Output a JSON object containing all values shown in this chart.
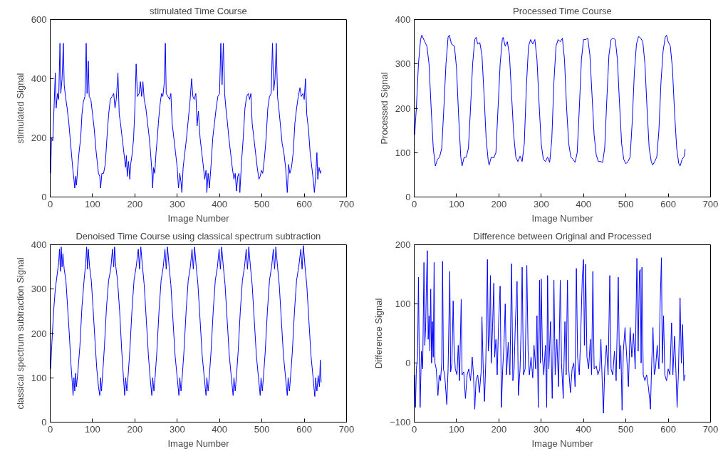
{
  "chart_data": [
    {
      "type": "line",
      "title": "stimulated Time Course",
      "xlabel": "Image Number",
      "ylabel": "stimulated Signal",
      "xlim": [
        0,
        700
      ],
      "ylim": [
        0,
        600
      ],
      "xticks": [
        0,
        100,
        200,
        300,
        400,
        500,
        600,
        700
      ],
      "yticks": [
        0,
        200,
        400,
        600
      ],
      "grid": false,
      "series": [
        {
          "color": "#0000ff",
          "x": [
            1,
            3,
            6,
            9,
            12,
            14,
            17,
            20,
            23,
            25,
            28,
            31,
            33,
            36,
            40,
            44,
            47,
            50,
            53,
            56,
            58,
            60,
            62,
            65,
            68,
            72,
            75,
            78,
            82,
            85,
            87,
            90,
            92,
            96,
            100,
            104,
            108,
            111,
            114,
            117,
            119,
            122,
            126,
            130,
            134,
            138,
            142,
            146,
            150,
            153,
            156,
            160,
            163,
            166,
            170,
            174,
            178,
            180,
            182,
            185,
            188,
            190,
            194,
            197,
            200,
            203,
            206,
            210,
            213,
            216,
            219,
            222,
            226,
            230,
            234,
            237,
            240,
            242,
            244,
            247,
            250,
            253,
            256,
            260,
            263,
            266,
            269,
            272,
            274,
            278,
            282,
            285,
            288,
            292,
            296,
            300,
            303,
            306,
            309,
            311,
            314,
            318,
            322,
            326,
            330,
            334,
            337,
            340,
            344,
            347,
            350,
            354,
            358,
            362,
            365,
            368,
            370,
            373,
            376,
            380,
            384,
            388,
            392,
            396,
            400,
            403,
            406,
            409,
            412,
            415,
            418,
            422,
            426,
            430,
            434,
            437,
            440,
            443,
            446,
            448,
            452,
            456,
            460,
            464,
            468,
            471,
            474,
            477,
            481,
            485,
            489,
            493,
            496,
            499,
            502,
            506,
            510,
            514,
            518,
            522,
            525,
            528,
            531,
            534,
            537,
            540,
            544,
            548,
            552,
            556,
            558,
            560,
            563,
            566,
            570,
            574,
            578,
            582,
            586,
            590,
            593,
            597,
            600,
            603,
            606,
            610,
            614,
            618,
            622,
            624,
            627,
            630,
            632,
            635,
            638,
            640
          ],
          "values": [
            80,
            200,
            190,
            300,
            420,
            300,
            350,
            330,
            520,
            350,
            400,
            520,
            380,
            340,
            300,
            250,
            200,
            150,
            100,
            60,
            30,
            70,
            40,
            100,
            150,
            200,
            280,
            320,
            340,
            520,
            350,
            460,
            340,
            330,
            280,
            230,
            160,
            120,
            80,
            70,
            30,
            80,
            80,
            110,
            200,
            280,
            330,
            340,
            350,
            300,
            330,
            420,
            280,
            250,
            200,
            150,
            100,
            140,
            70,
            120,
            60,
            110,
            150,
            200,
            300,
            450,
            340,
            350,
            390,
            340,
            390,
            330,
            300,
            250,
            200,
            150,
            90,
            30,
            100,
            80,
            150,
            200,
            260,
            320,
            350,
            340,
            380,
            520,
            350,
            340,
            330,
            350,
            250,
            200,
            150,
            100,
            30,
            80,
            50,
            15,
            100,
            150,
            200,
            260,
            320,
            400,
            340,
            330,
            350,
            240,
            290,
            200,
            150,
            100,
            60,
            90,
            15,
            80,
            30,
            110,
            200,
            250,
            300,
            340,
            350,
            520,
            380,
            520,
            350,
            300,
            260,
            200,
            150,
            100,
            60,
            80,
            20,
            70,
            80,
            15,
            120,
            200,
            300,
            340,
            350,
            330,
            350,
            250,
            200,
            150,
            100,
            60,
            70,
            90,
            80,
            130,
            200,
            300,
            340,
            350,
            520,
            360,
            400,
            520,
            340,
            300,
            240,
            180,
            150,
            100,
            60,
            15,
            110,
            80,
            100,
            150,
            250,
            300,
            340,
            370,
            340,
            350,
            330,
            400,
            280,
            230,
            150,
            100,
            50,
            15,
            70,
            150,
            60,
            100,
            80,
            90
          ]
        }
      ]
    },
    {
      "type": "line",
      "title": "Processed Time Course",
      "xlabel": "Image Number",
      "ylabel": "Processed Signal",
      "xlim": [
        0,
        700
      ],
      "ylim": [
        0,
        400
      ],
      "xticks": [
        0,
        100,
        200,
        300,
        400,
        500,
        600,
        700
      ],
      "yticks": [
        0,
        100,
        200,
        300,
        400
      ],
      "grid": false,
      "series": [
        {
          "color": "#0000ff",
          "x": [
            1,
            5,
            10,
            15,
            18,
            25,
            30,
            35,
            40,
            45,
            50,
            55,
            60,
            65,
            70,
            75,
            80,
            83,
            88,
            95,
            100,
            105,
            110,
            113,
            118,
            123,
            128,
            133,
            138,
            143,
            146,
            150,
            155,
            160,
            165,
            170,
            175,
            177,
            182,
            188,
            193,
            198,
            203,
            208,
            210,
            215,
            220,
            225,
            230,
            235,
            240,
            245,
            250,
            255,
            260,
            265,
            270,
            275,
            280,
            285,
            290,
            295,
            300,
            305,
            310,
            315,
            320,
            325,
            330,
            335,
            340,
            345,
            350,
            355,
            360,
            365,
            370,
            375,
            380,
            385,
            390,
            395,
            400,
            405,
            410,
            415,
            420,
            425,
            430,
            435,
            440,
            445,
            450,
            455,
            460,
            465,
            470,
            475,
            480,
            485,
            490,
            495,
            500,
            505,
            510,
            515,
            520,
            525,
            530,
            535,
            540,
            545,
            550,
            555,
            560,
            563,
            568,
            573,
            578,
            583,
            588,
            593,
            596,
            600,
            605,
            610,
            615,
            620,
            625,
            628,
            633,
            638,
            640
          ],
          "values": [
            140,
            200,
            300,
            355,
            365,
            350,
            340,
            300,
            200,
            110,
            70,
            85,
            90,
            110,
            200,
            300,
            360,
            365,
            345,
            340,
            290,
            180,
            90,
            70,
            90,
            90,
            110,
            200,
            300,
            355,
            360,
            345,
            348,
            320,
            230,
            130,
            80,
            72,
            90,
            88,
            100,
            200,
            300,
            355,
            360,
            340,
            350,
            320,
            230,
            140,
            90,
            80,
            92,
            80,
            120,
            250,
            340,
            355,
            345,
            355,
            310,
            210,
            120,
            85,
            80,
            90,
            78,
            130,
            260,
            340,
            355,
            350,
            358,
            310,
            200,
            120,
            90,
            85,
            78,
            100,
            200,
            310,
            355,
            355,
            358,
            320,
            230,
            140,
            95,
            80,
            80,
            78,
            110,
            220,
            320,
            355,
            358,
            355,
            310,
            210,
            120,
            85,
            75,
            80,
            90,
            170,
            280,
            345,
            362,
            358,
            350,
            300,
            200,
            110,
            80,
            72,
            80,
            90,
            150,
            260,
            330,
            360,
            365,
            350,
            340,
            290,
            190,
            110,
            75,
            70,
            85,
            92,
            108
          ]
        }
      ]
    },
    {
      "type": "line",
      "title": "Denoised Time Course using classical spectrum subtraction",
      "xlabel": "Image Number",
      "ylabel": "classical spectrum subtraction Signal",
      "xlim": [
        0,
        700
      ],
      "ylim": [
        0,
        400
      ],
      "xticks": [
        0,
        100,
        200,
        300,
        400,
        500,
        600,
        700
      ],
      "yticks": [
        0,
        100,
        200,
        300,
        400
      ],
      "grid": false,
      "series": [
        {
          "color": "#0000ff",
          "x": [
            1,
            4,
            8,
            12,
            16,
            20,
            22,
            24,
            26,
            28,
            30,
            33,
            37,
            41,
            45,
            49,
            52,
            54,
            56,
            58,
            60,
            62,
            65,
            70,
            75,
            80,
            84,
            86,
            88,
            90,
            93,
            97,
            101,
            106,
            110,
            114,
            117,
            119,
            121,
            124,
            128,
            133,
            138,
            143,
            147,
            150,
            152,
            155,
            159,
            164,
            169,
            173,
            176,
            178,
            181,
            184,
            188,
            193,
            198,
            203,
            208,
            211,
            214,
            218,
            222,
            227,
            232,
            236,
            240,
            242,
            245,
            248,
            252,
            257,
            262,
            267,
            271,
            274,
            277,
            281,
            285,
            290,
            295,
            300,
            304,
            306,
            309,
            312,
            316,
            321,
            326,
            331,
            335,
            338,
            341,
            345,
            349,
            354,
            359,
            364,
            368,
            370,
            373,
            376,
            380,
            385,
            390,
            395,
            399,
            402,
            405,
            409,
            413,
            418,
            423,
            428,
            432,
            434,
            437,
            440,
            444,
            449,
            454,
            459,
            463,
            466,
            469,
            473,
            477,
            482,
            487,
            492,
            496,
            498,
            501,
            504,
            508,
            513,
            518,
            523,
            527,
            530,
            533,
            537,
            541,
            546,
            551,
            556,
            560,
            562,
            565,
            568,
            572,
            577,
            582,
            587,
            592,
            595,
            598,
            602,
            606,
            611,
            616,
            621,
            625,
            627,
            630,
            633,
            636,
            638,
            640
          ],
          "values": [
            120,
            180,
            250,
            300,
            330,
            360,
            390,
            340,
            395,
            350,
            380,
            345,
            320,
            260,
            200,
            130,
            90,
            60,
            100,
            70,
            110,
            80,
            110,
            170,
            260,
            320,
            360,
            395,
            345,
            390,
            350,
            320,
            260,
            180,
            120,
            80,
            60,
            100,
            70,
            110,
            170,
            260,
            320,
            345,
            390,
            350,
            395,
            350,
            320,
            250,
            160,
            100,
            60,
            100,
            70,
            105,
            160,
            250,
            320,
            350,
            390,
            345,
            395,
            350,
            310,
            230,
            150,
            100,
            60,
            100,
            70,
            105,
            160,
            250,
            320,
            350,
            390,
            345,
            395,
            350,
            310,
            230,
            150,
            100,
            60,
            100,
            70,
            105,
            160,
            250,
            320,
            350,
            390,
            345,
            395,
            350,
            310,
            230,
            150,
            100,
            60,
            100,
            70,
            105,
            160,
            250,
            320,
            350,
            390,
            345,
            395,
            350,
            310,
            230,
            150,
            100,
            60,
            100,
            70,
            105,
            160,
            250,
            320,
            350,
            390,
            345,
            395,
            350,
            310,
            230,
            150,
            100,
            60,
            100,
            70,
            105,
            160,
            250,
            320,
            350,
            390,
            345,
            395,
            350,
            310,
            230,
            150,
            100,
            60,
            100,
            70,
            105,
            160,
            250,
            320,
            350,
            390,
            345,
            398,
            350,
            310,
            230,
            150,
            100,
            58,
            100,
            70,
            105,
            80,
            140,
            90
          ]
        }
      ]
    },
    {
      "type": "line",
      "title": "Difference between Original and Processed",
      "xlabel": "Image Number",
      "ylabel": "Difference Signal",
      "xlim": [
        0,
        700
      ],
      "ylim": [
        -100,
        200
      ],
      "xticks": [
        0,
        100,
        200,
        300,
        400,
        500,
        600,
        700
      ],
      "yticks": [
        -100,
        0,
        100,
        200
      ],
      "grid": false,
      "series": [
        {
          "color": "#0000ff",
          "x": [
            1,
            3,
            5,
            8,
            10,
            12,
            14,
            17,
            20,
            23,
            25,
            27,
            29,
            31,
            33,
            35,
            37,
            39,
            41,
            43,
            45,
            47,
            49,
            52,
            56,
            59,
            62,
            65,
            67,
            69,
            72,
            77,
            80,
            84,
            86,
            89,
            92,
            94,
            97,
            101,
            104,
            107,
            111,
            113,
            117,
            121,
            125,
            129,
            133,
            137,
            140,
            143,
            146,
            150,
            154,
            158,
            160,
            163,
            166,
            169,
            171,
            173,
            175,
            178,
            180,
            182,
            185,
            188,
            190,
            193,
            196,
            199,
            203,
            206,
            209,
            212,
            215,
            218,
            222,
            226,
            230,
            233,
            236,
            239,
            243,
            246,
            250,
            253,
            255,
            258,
            262,
            266,
            269,
            272,
            276,
            280,
            283,
            287,
            290,
            293,
            296,
            298,
            300,
            303,
            306,
            310,
            313,
            315,
            318,
            322,
            326,
            330,
            333,
            337,
            341,
            345,
            348,
            352,
            356,
            359,
            362,
            365,
            369,
            373,
            377,
            380,
            383,
            386,
            390,
            393,
            397,
            400,
            402,
            405,
            408,
            412,
            416,
            419,
            422,
            425,
            430,
            434,
            438,
            441,
            444,
            447,
            450,
            454,
            458,
            462,
            465,
            469,
            473,
            477,
            482,
            485,
            488,
            491,
            494,
            498,
            502,
            506,
            510,
            514,
            518,
            522,
            526,
            529,
            532,
            534,
            536,
            538,
            541,
            545,
            549,
            553,
            556,
            558,
            561,
            564,
            567,
            570,
            574,
            578,
            581,
            584,
            586,
            589,
            592,
            596,
            600,
            604,
            608,
            611,
            615,
            618,
            621,
            624,
            628,
            631,
            634,
            637,
            640
          ],
          "values": [
            -20,
            -75,
            -10,
            10,
            145,
            0,
            -75,
            20,
            -10,
            170,
            30,
            60,
            140,
            190,
            40,
            80,
            20,
            125,
            0,
            70,
            10,
            170,
            0,
            -10,
            -55,
            -20,
            -30,
            0,
            172,
            -10,
            -20,
            -70,
            -10,
            155,
            -15,
            0,
            105,
            30,
            -10,
            -20,
            30,
            -30,
            108,
            -20,
            -15,
            -60,
            -20,
            -10,
            -30,
            10,
            -20,
            -78,
            -30,
            -20,
            -50,
            -15,
            78,
            -10,
            -65,
            0,
            80,
            175,
            20,
            50,
            148,
            0,
            60,
            135,
            10,
            40,
            -20,
            60,
            130,
            -75,
            -10,
            30,
            100,
            -20,
            35,
            -20,
            168,
            -30,
            -10,
            70,
            138,
            -55,
            -10,
            70,
            162,
            -20,
            -10,
            165,
            20,
            -20,
            10,
            -25,
            30,
            -10,
            80,
            -75,
            140,
            0,
            142,
            10,
            -20,
            30,
            -75,
            148,
            -10,
            70,
            -60,
            140,
            -20,
            40,
            -40,
            140,
            0,
            -60,
            70,
            -20,
            140,
            -10,
            -50,
            -10,
            0,
            -40,
            160,
            10,
            -20,
            40,
            145,
            175,
            30,
            167,
            10,
            -10,
            40,
            -20,
            155,
            -10,
            -5,
            -20,
            -10,
            40,
            -30,
            -85,
            -10,
            30,
            -20,
            148,
            -10,
            -20,
            20,
            -30,
            145,
            -10,
            30,
            -80,
            20,
            60,
            10,
            -40,
            60,
            10,
            50,
            -10,
            177,
            20,
            155,
            158,
            0,
            162,
            -20,
            -30,
            -20,
            -40,
            -60,
            -78,
            0,
            60,
            -20,
            -10,
            30,
            -10,
            100,
            178,
            0,
            80,
            -20,
            -30,
            -10,
            -20,
            68,
            -20,
            45,
            -10,
            -75,
            -20,
            110,
            0,
            65,
            -30,
            -20
          ]
        }
      ]
    }
  ]
}
